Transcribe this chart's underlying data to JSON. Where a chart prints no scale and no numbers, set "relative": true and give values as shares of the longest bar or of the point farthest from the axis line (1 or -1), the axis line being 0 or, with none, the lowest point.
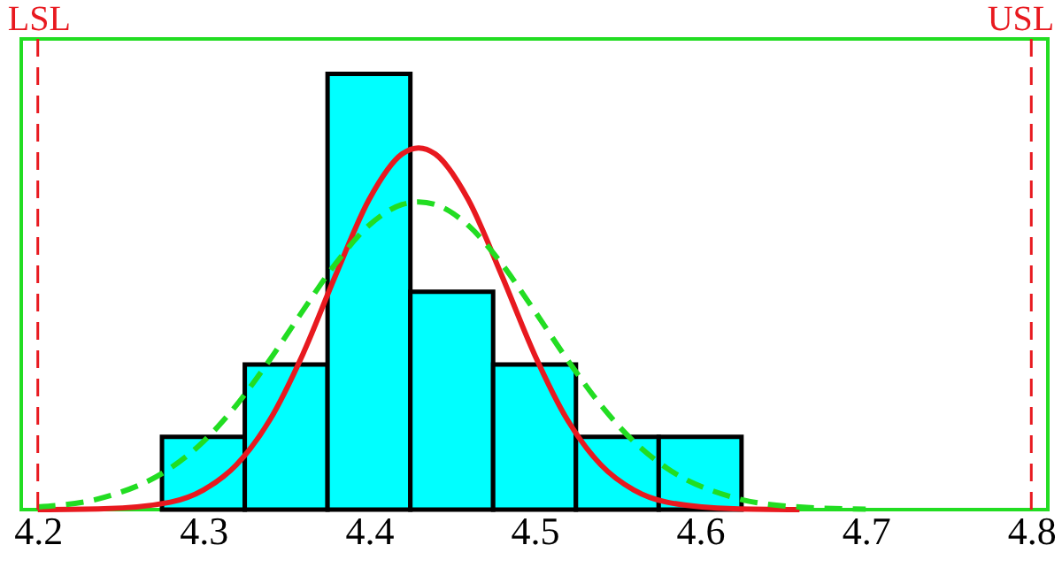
{
  "chart_data": {
    "type": "histogram",
    "relative": true,
    "bins": [
      4.275,
      4.325,
      4.375,
      4.425,
      4.475,
      4.525,
      4.575,
      4.625
    ],
    "values": [
      0.167,
      0.333,
      1,
      0.5,
      0.333,
      0.167,
      0.167
    ],
    "color": "#00ffff",
    "series": [
      {
        "type": "line",
        "color": "#e8191f",
        "line_style": "solid",
        "x": [
          4.2,
          4.24,
          4.28,
          4.3,
          4.32,
          4.34,
          4.36,
          4.38,
          4.4,
          4.42,
          4.43,
          4.44,
          4.46,
          4.48,
          4.5,
          4.52,
          4.54,
          4.56,
          4.58,
          4.62,
          4.66
        ],
        "values": [
          0,
          0.002,
          0.017,
          0.045,
          0.103,
          0.205,
          0.356,
          0.539,
          0.711,
          0.816,
          0.83,
          0.816,
          0.711,
          0.539,
          0.356,
          0.205,
          0.103,
          0.045,
          0.017,
          0.002,
          0
        ]
      },
      {
        "type": "line",
        "color": "#22dd22",
        "line_style": "dashed",
        "x": [
          4.2,
          4.24,
          4.28,
          4.3,
          4.32,
          4.34,
          4.36,
          4.38,
          4.4,
          4.42,
          4.43,
          4.44,
          4.46,
          4.48,
          4.5,
          4.52,
          4.54,
          4.56,
          4.58,
          4.62,
          4.66,
          4.7
        ],
        "values": [
          0.006,
          0.028,
          0.095,
          0.156,
          0.24,
          0.343,
          0.456,
          0.565,
          0.652,
          0.7,
          0.706,
          0.7,
          0.652,
          0.565,
          0.456,
          0.343,
          0.24,
          0.156,
          0.095,
          0.028,
          0.006,
          0.001
        ]
      }
    ],
    "xlim": [
      4.19,
      4.81
    ],
    "xticks": [
      4.2,
      4.3,
      4.4,
      4.5,
      4.6,
      4.7,
      4.8
    ],
    "ref_lines": [
      {
        "axis": "x",
        "value": 4.2,
        "label": "LSL",
        "color": "#e8191f",
        "line_style": "dashed"
      },
      {
        "axis": "x",
        "value": 4.8,
        "label": "USL",
        "color": "#e8191f",
        "line_style": "dashed"
      }
    ],
    "tick_labels": "x",
    "grid": false,
    "legend": false
  }
}
